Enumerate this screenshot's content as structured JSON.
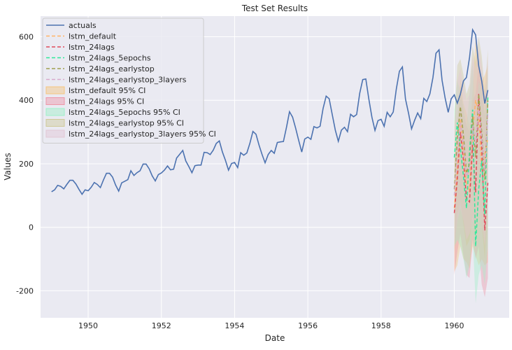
{
  "chart_data": {
    "type": "line",
    "title": "Test Set Results",
    "xlabel": "Date",
    "ylabel": "Values",
    "xlim": [
      1948.7,
      1961.5
    ],
    "ylim": [
      -285,
      665
    ],
    "x_ticks": [
      1950,
      1952,
      1954,
      1956,
      1958,
      1960
    ],
    "y_ticks": [
      -200,
      0,
      200,
      400,
      600
    ],
    "grid": true,
    "legend_position": "upper-left",
    "background": "#eaeaf2",
    "actuals": {
      "name": "actuals",
      "color": "#4c72b0",
      "start_year": 1949,
      "values": [
        112,
        118,
        132,
        129,
        121,
        135,
        148,
        148,
        136,
        119,
        104,
        118,
        115,
        126,
        141,
        135,
        125,
        149,
        170,
        170,
        158,
        133,
        114,
        140,
        145,
        150,
        178,
        163,
        172,
        178,
        199,
        199,
        184,
        162,
        146,
        166,
        171,
        180,
        193,
        181,
        183,
        218,
        230,
        242,
        209,
        191,
        172,
        194,
        196,
        196,
        236,
        235,
        229,
        243,
        264,
        272,
        237,
        211,
        180,
        201,
        204,
        188,
        235,
        227,
        234,
        264,
        302,
        293,
        259,
        229,
        203,
        229,
        242,
        233,
        267,
        269,
        270,
        315,
        364,
        347,
        312,
        274,
        237,
        278,
        284,
        277,
        317,
        313,
        318,
        374,
        413,
        405,
        355,
        306,
        271,
        306,
        315,
        301,
        356,
        348,
        355,
        422,
        465,
        467,
        404,
        347,
        305,
        336,
        340,
        318,
        362,
        348,
        363,
        435,
        491,
        505,
        404,
        359,
        310,
        337,
        360,
        342,
        406,
        396,
        420,
        472,
        548,
        559,
        463,
        407,
        362,
        405,
        417,
        391,
        419,
        461,
        472,
        535,
        622,
        606,
        508,
        461,
        390,
        432
      ]
    },
    "forecast_x": [
      "1960-01",
      "1960-02",
      "1960-03",
      "1960-04",
      "1960-05",
      "1960-06",
      "1960-07",
      "1960-08",
      "1960-09",
      "1960-10",
      "1960-11",
      "1960-12"
    ],
    "forecast_series": [
      {
        "name": "lstm_default",
        "color": "#ffb366",
        "values": [
          60,
          180,
          340,
          240,
          140,
          110,
          300,
          400,
          360,
          180,
          230,
          280
        ]
      },
      {
        "name": "lstm_24lags",
        "color": "#e04a5a",
        "values": [
          45,
          150,
          300,
          210,
          90,
          80,
          260,
          110,
          420,
          250,
          -10,
          140
        ]
      },
      {
        "name": "lstm_24lags_5epochs",
        "color": "#2ee89a",
        "values": [
          220,
          330,
          250,
          160,
          60,
          240,
          370,
          -60,
          120,
          210,
          40,
          410
        ]
      },
      {
        "name": "lstm_24lags_earlystop",
        "color": "#a0a050",
        "values": [
          120,
          280,
          380,
          290,
          170,
          200,
          350,
          220,
          420,
          300,
          150,
          400
        ]
      },
      {
        "name": "lstm_24lags_earlystop_3layers",
        "color": "#d8aacc",
        "values": [
          100,
          230,
          330,
          260,
          160,
          180,
          320,
          260,
          380,
          280,
          180,
          360
        ]
      }
    ],
    "ci_bands": [
      {
        "name": "lstm_default 95% CI",
        "color": "#f5c57e",
        "lower": [
          -140,
          -120,
          -60,
          -100,
          -110,
          -130,
          -60,
          -90,
          -120,
          -100,
          -120,
          -110
        ],
        "upper": [
          200,
          340,
          470,
          390,
          360,
          320,
          430,
          600,
          520,
          460,
          480,
          510
        ]
      },
      {
        "name": "lstm_24lags 95% CI",
        "color": "#ee97a8",
        "lower": [
          -150,
          -80,
          -20,
          -90,
          -150,
          -160,
          -40,
          -100,
          -60,
          -180,
          -220,
          -160
        ],
        "upper": [
          170,
          310,
          440,
          360,
          320,
          300,
          400,
          420,
          520,
          430,
          350,
          440
        ]
      },
      {
        "name": "lstm_24lags_5epochs 95% CI",
        "color": "#9ff0c8",
        "lower": [
          -60,
          -40,
          -60,
          -100,
          -160,
          -120,
          -20,
          -240,
          -150,
          -120,
          -180,
          -60
        ],
        "upper": [
          370,
          460,
          430,
          380,
          320,
          420,
          520,
          320,
          460,
          430,
          360,
          500
        ]
      },
      {
        "name": "lstm_24lags_earlystop 95% CI",
        "color": "#cfca98",
        "lower": [
          -80,
          40,
          80,
          10,
          -60,
          -40,
          40,
          -30,
          80,
          10,
          -100,
          60
        ],
        "upper": [
          330,
          510,
          530,
          480,
          420,
          450,
          570,
          520,
          600,
          540,
          430,
          560
        ]
      },
      {
        "name": "lstm_24lags_earlystop_3layers 95% CI",
        "color": "#e3c6d4",
        "lower": [
          -60,
          20,
          60,
          20,
          -40,
          -20,
          20,
          0,
          60,
          10,
          -60,
          60
        ],
        "upper": [
          300,
          460,
          500,
          450,
          400,
          420,
          540,
          500,
          570,
          510,
          420,
          540
        ]
      }
    ]
  }
}
